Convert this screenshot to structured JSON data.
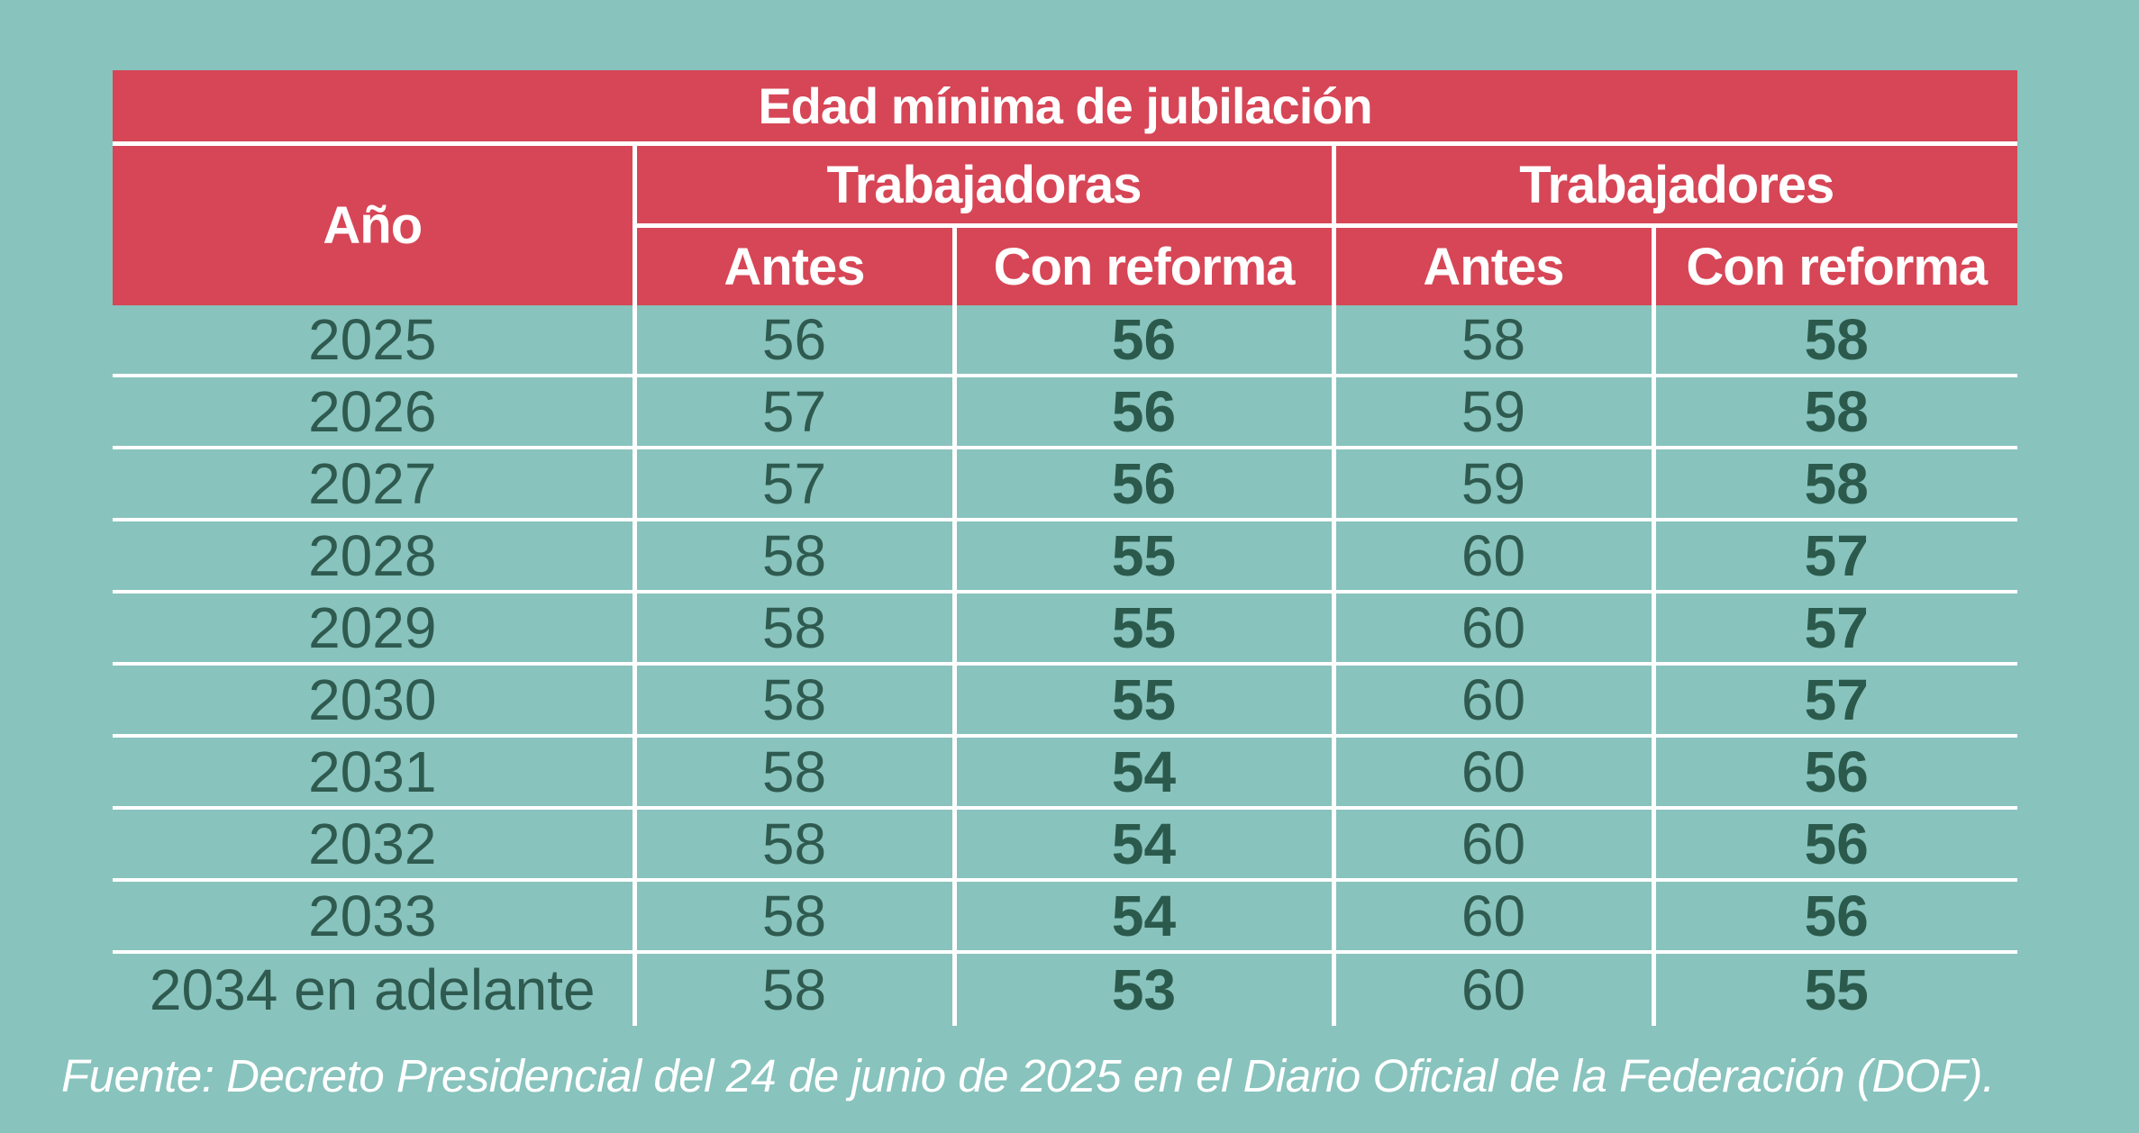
{
  "chart_data": {
    "type": "table",
    "title": "Edad mínima de jubilación",
    "year_header": "Año",
    "groups": [
      "Trabajadoras",
      "Trabajadores"
    ],
    "subheaders": [
      "Antes",
      "Con reforma",
      "Antes",
      "Con reforma"
    ],
    "rows": [
      {
        "year": "2025",
        "values": [
          "56",
          "56",
          "58",
          "58"
        ]
      },
      {
        "year": "2026",
        "values": [
          "57",
          "56",
          "59",
          "58"
        ]
      },
      {
        "year": "2027",
        "values": [
          "57",
          "56",
          "59",
          "58"
        ]
      },
      {
        "year": "2028",
        "values": [
          "58",
          "55",
          "60",
          "57"
        ]
      },
      {
        "year": "2029",
        "values": [
          "58",
          "55",
          "60",
          "57"
        ]
      },
      {
        "year": "2030",
        "values": [
          "58",
          "55",
          "60",
          "57"
        ]
      },
      {
        "year": "2031",
        "values": [
          "58",
          "54",
          "60",
          "56"
        ]
      },
      {
        "year": "2032",
        "values": [
          "58",
          "54",
          "60",
          "56"
        ]
      },
      {
        "year": "2033",
        "values": [
          "58",
          "54",
          "60",
          "56"
        ]
      },
      {
        "year": "2034 en adelante",
        "values": [
          "58",
          "53",
          "60",
          "55"
        ]
      }
    ]
  },
  "source": "Fuente: Decreto Presidencial del 24 de junio de 2025 en el Diario Oficial de la Federación (DOF).",
  "colors": {
    "background": "#88c3bd",
    "header": "#d64656",
    "text": "#2f5a4f",
    "rule": "#ffffff"
  }
}
